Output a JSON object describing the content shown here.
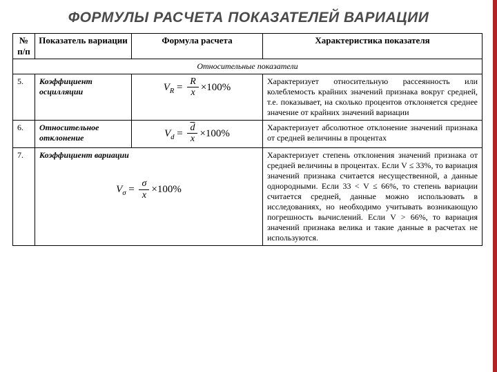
{
  "colors": {
    "accent": "#b22222",
    "title": "#4a4a4a",
    "text": "#000000",
    "background": "#ffffff",
    "border": "#000000"
  },
  "typography": {
    "title_fontsize": 21,
    "header_fontsize": 13,
    "cell_fontsize": 12,
    "formula_fontsize": 15
  },
  "title": "ФОРМУЛЫ РАСЧЕТА ПОКАЗАТЕЛЕЙ ВАРИАЦИИ",
  "columns": {
    "num": "№ п/п",
    "indicator": "Показатель вариации",
    "formula": "Формула расчета",
    "description": "Характеристика показателя"
  },
  "section": "Относительные показатели",
  "rows": [
    {
      "num": "5.",
      "label": "Коэффициент осцилляции",
      "formula": {
        "lhs_var": "V",
        "lhs_sub": "R",
        "num": "R",
        "den_overline": "x",
        "tail": "×100%"
      },
      "desc": "Характеризует относительную рассеянность или колеблемость крайних значений признака вокруг средней, т.е. показывает, на сколько процентов отклоняется среднее значение от крайних значений вариации"
    },
    {
      "num": "6.",
      "label": "Относительное отклонение",
      "formula": {
        "lhs_var": "V",
        "lhs_sub": "d",
        "num_overline": "d",
        "den_overline": "x",
        "tail": "×100%"
      },
      "desc": "Характеризует абсолютное отклонение значений признака от средней величины в процентах"
    },
    {
      "num": "7.",
      "label": "Коэффициент вариации",
      "formula": {
        "lhs_var": "V",
        "lhs_sub": "σ",
        "num": "σ",
        "den_overline": "x",
        "tail": "×100%"
      },
      "desc": "Характеризует степень отклонения значений признака от средней величины в процентах. Если V ≤ 33%, то вариация значений признака считается несущественной, а данные однородными. Если 33 < V ≤ 66%, то степень вариации считается средней, данные можно использовать в исследованиях, но необходимо учитывать возникающую погрешность вычислений. Если V > 66%, то вариация значений признака велика и такие данные в расчетах не используются.",
      "span_formula_into_indicator": true
    }
  ]
}
